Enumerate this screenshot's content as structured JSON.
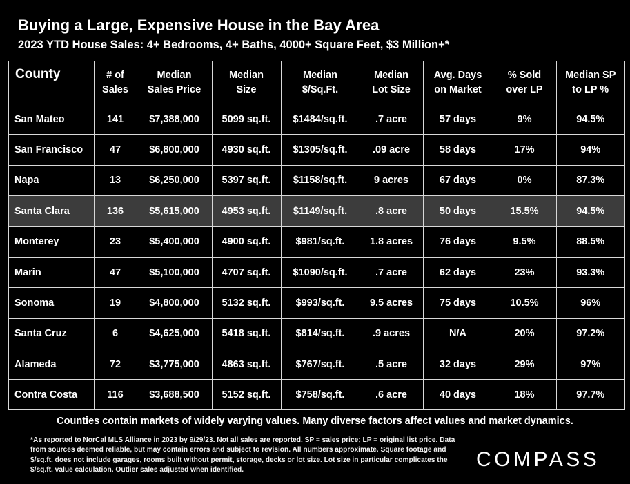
{
  "title": "Buying a Large, Expensive House in the Bay Area",
  "subtitle": "2023 YTD House Sales:  4+ Bedrooms, 4+ Baths, 4000+ Square Feet, $3 Million+*",
  "chart_data": {
    "type": "table",
    "columns": [
      [
        "County"
      ],
      [
        "# of",
        "Sales"
      ],
      [
        "Median",
        "Sales Price"
      ],
      [
        "Median",
        "Size"
      ],
      [
        "Median",
        "$/Sq.Ft."
      ],
      [
        "Median",
        "Lot Size"
      ],
      [
        "Avg. Days",
        "on Market"
      ],
      [
        "% Sold",
        "over LP"
      ],
      [
        "Median SP",
        "to LP %"
      ]
    ],
    "rows": [
      [
        "San Mateo",
        "141",
        "$7,388,000",
        "5099 sq.ft.",
        "$1484/sq.ft.",
        ".7 acre",
        "57 days",
        "9%",
        "94.5%"
      ],
      [
        "San Francisco",
        "47",
        "$6,800,000",
        "4930 sq.ft.",
        "$1305/sq.ft.",
        ".09 acre",
        "58 days",
        "17%",
        "94%"
      ],
      [
        "Napa",
        "13",
        "$6,250,000",
        "5397 sq.ft.",
        "$1158/sq.ft.",
        "9 acres",
        "67 days",
        "0%",
        "87.3%"
      ],
      [
        "Santa Clara",
        "136",
        "$5,615,000",
        "4953 sq.ft.",
        "$1149/sq.ft.",
        ".8 acre",
        "50 days",
        "15.5%",
        "94.5%"
      ],
      [
        "Monterey",
        "23",
        "$5,400,000",
        "4900 sq.ft.",
        "$981/sq.ft.",
        "1.8 acres",
        "76 days",
        "9.5%",
        "88.5%"
      ],
      [
        "Marin",
        "47",
        "$5,100,000",
        "4707 sq.ft.",
        "$1090/sq.ft.",
        ".7 acre",
        "62 days",
        "23%",
        "93.3%"
      ],
      [
        "Sonoma",
        "19",
        "$4,800,000",
        "5132 sq.ft.",
        "$993/sq.ft.",
        "9.5 acres",
        "75 days",
        "10.5%",
        "96%"
      ],
      [
        "Santa Cruz",
        "6",
        "$4,625,000",
        "5418 sq.ft.",
        "$814/sq.ft.",
        ".9 acres",
        "N/A",
        "20%",
        "97.2%"
      ],
      [
        "Alameda",
        "72",
        "$3,775,000",
        "4863 sq.ft.",
        "$767/sq.ft.",
        ".5 acre",
        "32 days",
        "29%",
        "97%"
      ],
      [
        "Contra Costa",
        "116",
        "$3,688,500",
        "5152 sq.ft.",
        "$758/sq.ft.",
        ".6 acre",
        "40 days",
        "18%",
        "97.7%"
      ]
    ],
    "highlighted_row": "Santa Clara"
  },
  "note": "Counties contain markets of widely varying values. Many diverse factors affect values and market dynamics.",
  "footnote": "*As reported to NorCal MLS Alliance in 2023 by 9/29/23. Not all sales are reported. SP = sales price;  LP = original list price. Data from sources deemed reliable, but may contain errors and subject to revision. All numbers approximate. Square footage and $/sq.ft. does not include garages, rooms built without permit, storage, decks or lot size. Lot size in particular complicates the $/sq.ft. value calculation. Outlier sales adjusted when identified.",
  "logo": "COMPASS",
  "colors": {
    "background": "#000000",
    "text": "#ffffff",
    "grid": "#d8d8d8",
    "highlight_row": "#3c3c3c"
  }
}
